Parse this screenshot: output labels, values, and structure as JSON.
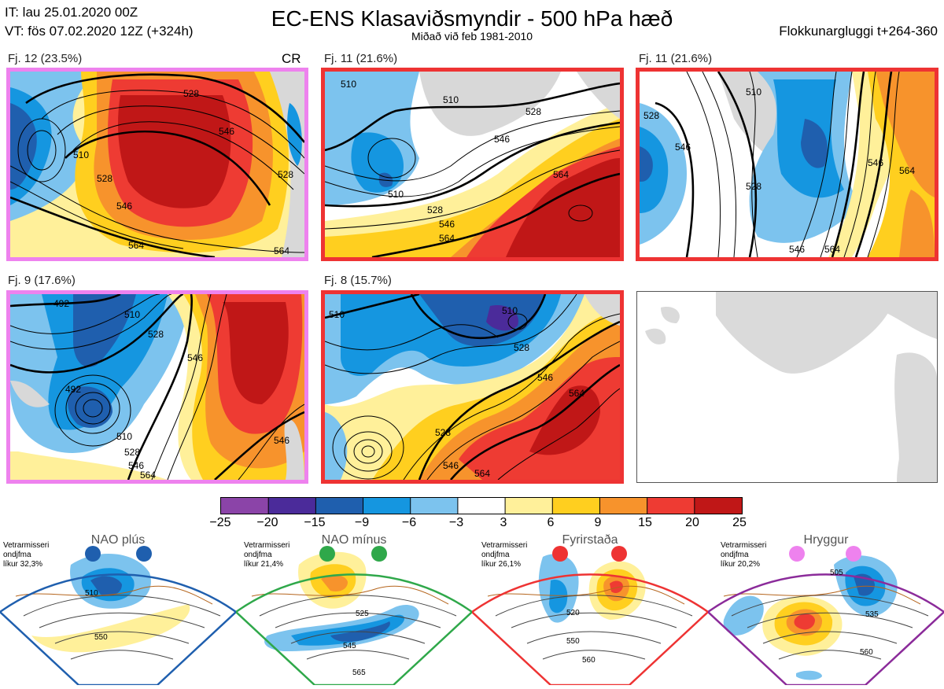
{
  "header": {
    "init_time": "IT: lau 25.01.2020 00Z",
    "valid_time": "VT: fös 07.02.2020 12Z  (+324h)",
    "title": "EC-ENS Klasaviðsmyndir - 500 hPa hæð",
    "subtitle": "Miðað við feb 1981-2010",
    "window": "Flokkunargluggi t+264-360"
  },
  "panels": [
    {
      "label": "Fj. 12 (23.5%)",
      "tag": "CR",
      "frame_color": "#ee82ee",
      "contours": [
        "528",
        "546",
        "510",
        "528",
        "546",
        "564",
        "528",
        "564"
      ]
    },
    {
      "label": "Fj. 11 (21.6%)",
      "frame_color": "#ee3333",
      "contours": [
        "510",
        "510",
        "528",
        "546",
        "564",
        "528",
        "546",
        "564",
        "510"
      ]
    },
    {
      "label": "Fj. 11 (21.6%)",
      "frame_color": "#ee3333",
      "contours": [
        "510",
        "528",
        "546",
        "528",
        "546",
        "564",
        "546",
        "564"
      ]
    },
    {
      "label": "Fj. 9 (17.6%)",
      "frame_color": "#ee82ee",
      "contours": [
        "492",
        "510",
        "528",
        "546",
        "492",
        "510",
        "528",
        "546",
        "564",
        "546"
      ]
    },
    {
      "label": "Fj. 8 (15.7%)",
      "frame_color": "#ee3333",
      "contours": [
        "510",
        "528",
        "546",
        "564",
        "528",
        "546",
        "564",
        "510"
      ]
    }
  ],
  "colorbar": {
    "ticks": [
      "−25",
      "−20",
      "−15",
      "−9",
      "−6",
      "−3",
      "3",
      "6",
      "9",
      "15",
      "20",
      "25"
    ],
    "colors": [
      "#8b44a8",
      "#4b2b9a",
      "#1f5fae",
      "#1596e0",
      "#7cc3ee",
      "#ffffff",
      "#fff09a",
      "#ffcf1f",
      "#f7932c",
      "#ee3b33",
      "#c01717"
    ]
  },
  "regimes": [
    {
      "name": "NAO plús",
      "note": [
        "Vetrarmisseri",
        "ondjfma",
        "líkur 32,3%"
      ],
      "frame_color": "#1f5fae",
      "dot_color": "#1f5fae",
      "contours": [
        "510",
        "550"
      ]
    },
    {
      "name": "NAO mínus",
      "note": [
        "Vetrarmisseri",
        "ondjfma",
        "líkur 21,4%"
      ],
      "frame_color": "#2fa84a",
      "dot_color": "#2fa84a",
      "contours": [
        "525",
        "545",
        "565"
      ]
    },
    {
      "name": "Fyrirstaða",
      "note": [
        "Vetrarmisseri",
        "ondjfma",
        "líkur 26,1%"
      ],
      "frame_color": "#ee3333",
      "dot_color": "#ee3333",
      "contours": [
        "520",
        "550",
        "560"
      ]
    },
    {
      "name": "Hryggur",
      "note": [
        "Vetrarmisseri",
        "ondjfma",
        "líkur 20,2%"
      ],
      "frame_color": "#8b2b9a",
      "dot_color": "#ee82ee",
      "contours": [
        "505",
        "535",
        "560"
      ]
    }
  ]
}
